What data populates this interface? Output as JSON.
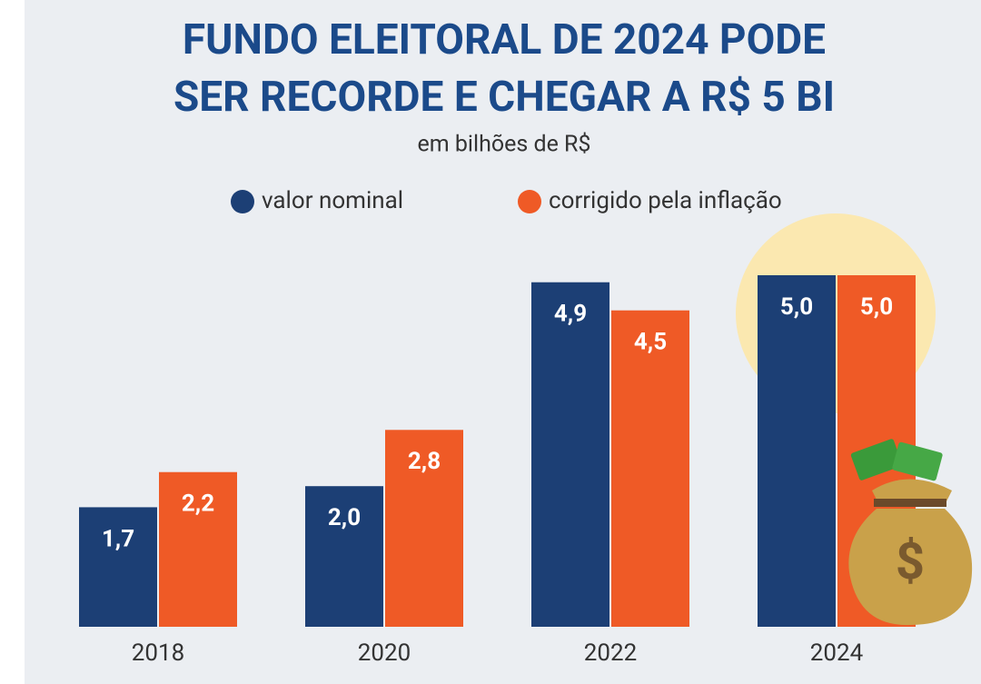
{
  "chart_data": {
    "type": "bar",
    "title_lines": [
      "FUNDO ELEITORAL DE 2024 PODE",
      "SER RECORDE E CHEGAR A R$ 5 BI"
    ],
    "subtitle": "em bilhões de R$",
    "categories": [
      "2018",
      "2020",
      "2022",
      "2024"
    ],
    "series": [
      {
        "name": "valor nominal",
        "color": "#1c3f75",
        "values": [
          1.7,
          2.0,
          4.9,
          5.0
        ],
        "value_labels": [
          "1,7",
          "2,0",
          "4,9",
          "5,0"
        ]
      },
      {
        "name": "corrigido pela inflação",
        "color": "#ef5a26",
        "values": [
          2.2,
          2.8,
          4.5,
          5.0
        ],
        "value_labels": [
          "2,2",
          "2,8",
          "4,5",
          "5,0"
        ]
      }
    ]
  }
}
